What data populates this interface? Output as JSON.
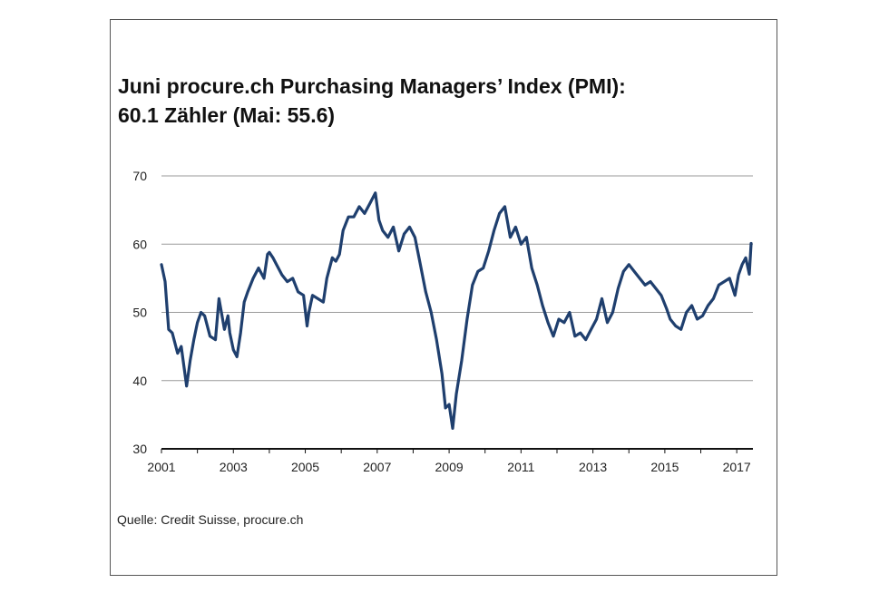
{
  "title_line1": "Juni procure.ch Purchasing Managers’ Index (PMI):",
  "title_line2": "60.1 Zähler (Mai: 55.6)",
  "source": "Quelle: Credit Suisse, procure.ch",
  "chart_data": {
    "type": "line",
    "title": "Juni procure.ch Purchasing Managers’ Index (PMI): 60.1 Zähler (Mai: 55.6)",
    "xlabel": "",
    "ylabel": "",
    "xlim": [
      2001,
      2017.45
    ],
    "ylim": [
      30,
      70
    ],
    "yticks": [
      30,
      40,
      50,
      60,
      70
    ],
    "xticks": [
      2001,
      2003,
      2005,
      2007,
      2009,
      2011,
      2013,
      2015,
      2017
    ],
    "grid": true,
    "line_color": "#1f3f6e",
    "series": [
      {
        "name": "",
        "x": [
          2001.0,
          2001.1,
          2001.2,
          2001.3,
          2001.45,
          2001.55,
          2001.7,
          2001.8,
          2001.9,
          2002.0,
          2002.1,
          2002.2,
          2002.35,
          2002.5,
          2002.6,
          2002.75,
          2002.85,
          2002.9,
          2003.0,
          2003.1,
          2003.2,
          2003.3,
          2003.4,
          2003.55,
          2003.7,
          2003.85,
          2003.95,
          2004.0,
          2004.1,
          2004.2,
          2004.35,
          2004.5,
          2004.65,
          2004.8,
          2004.95,
          2005.05,
          2005.1,
          2005.2,
          2005.35,
          2005.5,
          2005.6,
          2005.75,
          2005.85,
          2005.95,
          2006.05,
          2006.2,
          2006.35,
          2006.5,
          2006.65,
          2006.8,
          2006.95,
          2007.05,
          2007.15,
          2007.3,
          2007.45,
          2007.6,
          2007.75,
          2007.9,
          2008.05,
          2008.2,
          2008.35,
          2008.5,
          2008.65,
          2008.8,
          2008.9,
          2009.0,
          2009.1,
          2009.2,
          2009.35,
          2009.5,
          2009.65,
          2009.8,
          2009.95,
          2010.1,
          2010.25,
          2010.4,
          2010.55,
          2010.7,
          2010.85,
          2011.0,
          2011.15,
          2011.3,
          2011.45,
          2011.6,
          2011.75,
          2011.9,
          2012.05,
          2012.2,
          2012.35,
          2012.5,
          2012.65,
          2012.8,
          2012.95,
          2013.1,
          2013.25,
          2013.4,
          2013.55,
          2013.7,
          2013.85,
          2014.0,
          2014.15,
          2014.3,
          2014.45,
          2014.6,
          2014.75,
          2014.9,
          2015.05,
          2015.15,
          2015.3,
          2015.45,
          2015.6,
          2015.75,
          2015.9,
          2016.05,
          2016.2,
          2016.35,
          2016.5,
          2016.65,
          2016.8,
          2016.95,
          2017.05,
          2017.15,
          2017.25,
          2017.35,
          2017.4
        ],
        "values": [
          57.0,
          54.5,
          47.5,
          47.0,
          44.0,
          45.0,
          39.2,
          43.0,
          46.0,
          48.5,
          50.0,
          49.5,
          46.5,
          46.0,
          52.0,
          47.5,
          49.5,
          47.0,
          44.5,
          43.5,
          47.0,
          51.5,
          53.0,
          55.0,
          56.5,
          55.0,
          58.5,
          58.8,
          58.0,
          57.0,
          55.5,
          54.5,
          55.0,
          53.0,
          52.5,
          48.0,
          50.0,
          52.5,
          52.0,
          51.5,
          55.0,
          58.0,
          57.5,
          58.5,
          62.0,
          64.0,
          64.0,
          65.5,
          64.5,
          66.0,
          67.5,
          63.5,
          62.0,
          61.0,
          62.5,
          59.0,
          61.5,
          62.5,
          61.0,
          57.0,
          53.0,
          50.0,
          46.0,
          41.0,
          36.0,
          36.5,
          33.0,
          38.0,
          43.0,
          49.0,
          54.0,
          56.0,
          56.5,
          59.0,
          62.0,
          64.5,
          65.5,
          61.0,
          62.5,
          60.0,
          61.0,
          56.5,
          54.0,
          51.0,
          48.5,
          46.5,
          49.0,
          48.5,
          50.0,
          46.5,
          47.0,
          46.0,
          47.5,
          49.0,
          52.0,
          48.5,
          50.0,
          53.5,
          56.0,
          57.0,
          56.0,
          55.0,
          54.0,
          54.5,
          53.5,
          52.5,
          50.5,
          49.0,
          48.0,
          47.5,
          50.0,
          51.0,
          49.0,
          49.5,
          51.0,
          52.0,
          54.0,
          54.5,
          55.0,
          52.5,
          55.5,
          57.0,
          58.0,
          55.6,
          60.1
        ]
      }
    ]
  }
}
